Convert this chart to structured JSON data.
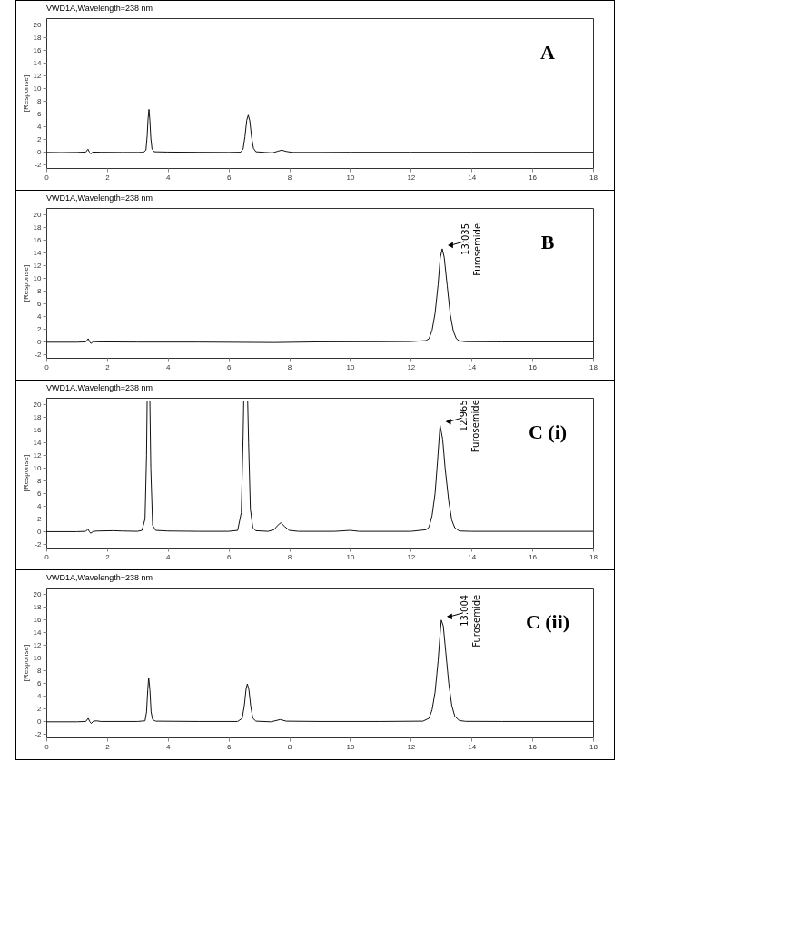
{
  "chart_data": [
    {
      "type": "line",
      "title": "VWD1A,Wavelength=238 nm",
      "ylabel": "[Response]",
      "color": "#111111",
      "marker": "none",
      "line_style": "solid",
      "grid": false,
      "xlim": [
        0,
        18
      ],
      "ylim": [
        -2.5,
        21
      ],
      "xticks": [
        0,
        2,
        4,
        6,
        8,
        10,
        12,
        14,
        16,
        18
      ],
      "yticks": [
        -2,
        0,
        2,
        4,
        6,
        8,
        10,
        12,
        14,
        16,
        18,
        20
      ],
      "annotations": [
        "A"
      ],
      "x": [
        0,
        0.5,
        1.0,
        1.3,
        1.37,
        1.42,
        1.47,
        1.52,
        1.8,
        2.5,
        3.0,
        3.2,
        3.28,
        3.32,
        3.35,
        3.38,
        3.41,
        3.44,
        3.48,
        3.55,
        4.0,
        5.0,
        6.0,
        6.4,
        6.48,
        6.54,
        6.6,
        6.65,
        6.7,
        6.76,
        6.82,
        6.9,
        7.2,
        7.45,
        7.6,
        7.75,
        7.9,
        8.1,
        9,
        10,
        12,
        14,
        16,
        18
      ],
      "values": [
        -0.05,
        -0.08,
        -0.05,
        0.0,
        0.45,
        0.0,
        -0.3,
        0.0,
        -0.03,
        -0.05,
        -0.05,
        -0.03,
        0.3,
        2.5,
        5.2,
        6.7,
        5.0,
        2.2,
        0.5,
        0.05,
        0.0,
        -0.03,
        -0.05,
        -0.02,
        0.5,
        2.4,
        5.0,
        5.8,
        4.9,
        2.3,
        0.6,
        0.05,
        -0.05,
        -0.12,
        0.1,
        0.3,
        0.1,
        -0.05,
        -0.05,
        -0.03,
        -0.03,
        -0.03,
        -0.03,
        -0.03
      ]
    },
    {
      "type": "line",
      "title": "VWD1A,Wavelength=238 nm",
      "ylabel": "[Response]",
      "color": "#111111",
      "marker": "none",
      "line_style": "solid",
      "grid": false,
      "xlim": [
        0,
        18
      ],
      "ylim": [
        -2.5,
        21
      ],
      "xticks": [
        0,
        2,
        4,
        6,
        8,
        10,
        12,
        14,
        16,
        18
      ],
      "yticks": [
        -2,
        0,
        2,
        4,
        6,
        8,
        10,
        12,
        14,
        16,
        18,
        20
      ],
      "annotations": [
        "B",
        {
          "text": "13.035",
          "x": 13.035,
          "y": 14.6
        },
        "Furosemide"
      ],
      "x": [
        0,
        1.0,
        1.3,
        1.38,
        1.43,
        1.47,
        1.55,
        1.7,
        3,
        5,
        7.5,
        9,
        11,
        12.0,
        12.5,
        12.6,
        12.7,
        12.8,
        12.9,
        12.97,
        13.035,
        13.1,
        13.2,
        13.3,
        13.4,
        13.5,
        13.6,
        13.8,
        15,
        18
      ],
      "values": [
        -0.05,
        -0.05,
        0.0,
        0.5,
        0.0,
        -0.25,
        0.05,
        0.0,
        -0.03,
        -0.03,
        -0.1,
        0.0,
        0.02,
        0.05,
        0.2,
        0.5,
        1.8,
        4.5,
        9.0,
        13.2,
        14.6,
        13.3,
        8.8,
        4.3,
        1.7,
        0.5,
        0.15,
        0.03,
        0.0,
        0.0
      ]
    },
    {
      "type": "line",
      "title": "VWD1A,Wavelength=238 nm",
      "ylabel": "[Response]",
      "color": "#111111",
      "marker": "none",
      "line_style": "solid",
      "grid": false,
      "xlim": [
        0,
        18
      ],
      "ylim": [
        -2.5,
        21
      ],
      "xticks": [
        0,
        2,
        4,
        6,
        8,
        10,
        12,
        14,
        16,
        18
      ],
      "yticks": [
        -2,
        0,
        2,
        4,
        6,
        8,
        10,
        12,
        14,
        16,
        18,
        20
      ],
      "annotations": [
        "C (i)",
        {
          "text": "12.965",
          "x": 12.965,
          "y": 16.7
        },
        "Furosemide"
      ],
      "x": [
        0,
        1.0,
        1.3,
        1.37,
        1.42,
        1.46,
        1.55,
        1.7,
        2.2,
        2.5,
        3.0,
        3.15,
        3.25,
        3.3,
        3.32,
        3.36,
        3.41,
        3.44,
        3.5,
        3.6,
        4.0,
        5.0,
        6.0,
        6.3,
        6.42,
        6.48,
        6.5,
        6.57,
        6.63,
        6.66,
        6.72,
        6.8,
        6.9,
        7.3,
        7.5,
        7.6,
        7.72,
        7.85,
        8.0,
        8.3,
        9.5,
        10.0,
        10.3,
        12.0,
        12.5,
        12.6,
        12.7,
        12.8,
        12.88,
        12.965,
        13.05,
        13.13,
        13.25,
        13.35,
        13.45,
        13.6,
        14,
        18
      ],
      "values": [
        0.0,
        0.0,
        0.05,
        0.4,
        0.0,
        -0.25,
        0.05,
        0.1,
        0.15,
        0.1,
        0.05,
        0.2,
        2.0,
        12.0,
        20.5,
        null,
        20.5,
        10,
        1.0,
        0.2,
        0.1,
        0.05,
        0.05,
        0.2,
        3.0,
        15,
        20.5,
        null,
        20.5,
        14,
        3.5,
        0.6,
        0.15,
        0.05,
        0.3,
        0.9,
        1.4,
        0.8,
        0.2,
        0.05,
        0.05,
        0.2,
        0.05,
        0.05,
        0.3,
        0.7,
        2.5,
        6.0,
        11.0,
        16.7,
        14.5,
        10.0,
        4.8,
        1.8,
        0.6,
        0.1,
        0.05,
        0.05
      ]
    },
    {
      "type": "line",
      "title": "VWD1A,Wavelength=238 nm",
      "ylabel": "[Response]",
      "color": "#111111",
      "marker": "none",
      "line_style": "solid",
      "grid": false,
      "xlim": [
        0,
        18
      ],
      "ylim": [
        -2.5,
        21
      ],
      "xticks": [
        0,
        2,
        4,
        6,
        8,
        10,
        12,
        14,
        16,
        18
      ],
      "yticks": [
        -2,
        0,
        2,
        4,
        6,
        8,
        10,
        12,
        14,
        16,
        18,
        20
      ],
      "annotations": [
        "C (ii)",
        {
          "text": "13.004",
          "x": 13.004,
          "y": 15.9
        },
        "Furosemide"
      ],
      "x": [
        0,
        1.0,
        1.3,
        1.38,
        1.43,
        1.48,
        1.55,
        1.65,
        1.8,
        3.0,
        3.25,
        3.3,
        3.34,
        3.37,
        3.41,
        3.45,
        3.5,
        3.6,
        5,
        6.3,
        6.45,
        6.52,
        6.58,
        6.62,
        6.67,
        6.73,
        6.8,
        6.9,
        7.4,
        7.7,
        7.9,
        9,
        11,
        12.4,
        12.6,
        12.7,
        12.8,
        12.9,
        12.97,
        13.004,
        13.07,
        13.15,
        13.25,
        13.35,
        13.45,
        13.6,
        13.8,
        15,
        18
      ],
      "values": [
        -0.05,
        -0.05,
        0.0,
        0.5,
        0.0,
        -0.3,
        0.05,
        0.1,
        0.0,
        0.0,
        0.1,
        1.5,
        5.0,
        6.9,
        5.0,
        1.5,
        0.3,
        0.05,
        0.0,
        0.0,
        0.5,
        2.5,
        5.2,
        5.9,
        5.0,
        2.4,
        0.5,
        0.05,
        -0.05,
        0.3,
        0.05,
        0.0,
        0.0,
        0.05,
        0.5,
        1.8,
        4.6,
        9.5,
        14.0,
        15.9,
        15.0,
        11.0,
        6.0,
        2.5,
        0.8,
        0.15,
        0.02,
        0.0,
        0.0
      ]
    }
  ]
}
